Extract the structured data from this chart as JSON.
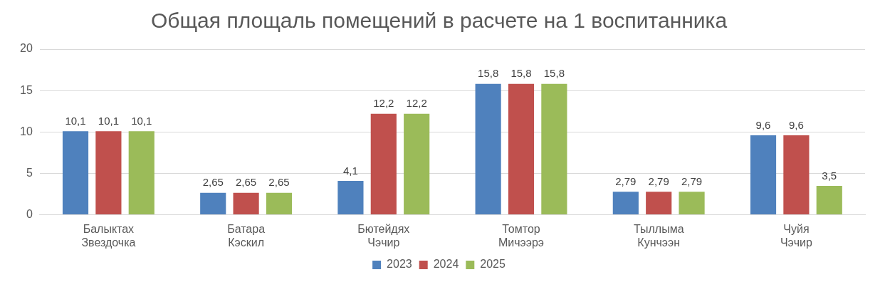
{
  "chart_data": {
    "type": "bar",
    "title": "Общая площаль помещений в расчете на 1 воспитанника",
    "categories": [
      "Балыктах Звездочка",
      "Батара Кэскил",
      "Бютейдях Чэчир",
      "Томтор Мичээрэ",
      "Тыллыма Кунчээн",
      "Чуйя Чэчир"
    ],
    "series": [
      {
        "name": "2023",
        "color": "#4f81bd",
        "values": [
          10.1,
          2.65,
          4.1,
          15.8,
          2.79,
          9.6
        ],
        "value_labels": [
          "10,1",
          "2,65",
          "4,1",
          "15,8",
          "2,79",
          "9,6"
        ]
      },
      {
        "name": "2024",
        "color": "#c0504d",
        "values": [
          10.1,
          2.65,
          12.2,
          15.8,
          2.79,
          9.6
        ],
        "value_labels": [
          "10,1",
          "2,65",
          "12,2",
          "15,8",
          "2,79",
          "9,6"
        ]
      },
      {
        "name": "2025",
        "color": "#9bbb59",
        "values": [
          10.1,
          2.65,
          12.2,
          15.8,
          2.79,
          3.5
        ],
        "value_labels": [
          "10,1",
          "2,65",
          "12,2",
          "15,8",
          "2,79",
          "3,5"
        ]
      }
    ],
    "ylim": [
      0,
      20
    ],
    "yticks": [
      0,
      5,
      10,
      15,
      20
    ],
    "grid": "y",
    "legend": "bottom"
  }
}
